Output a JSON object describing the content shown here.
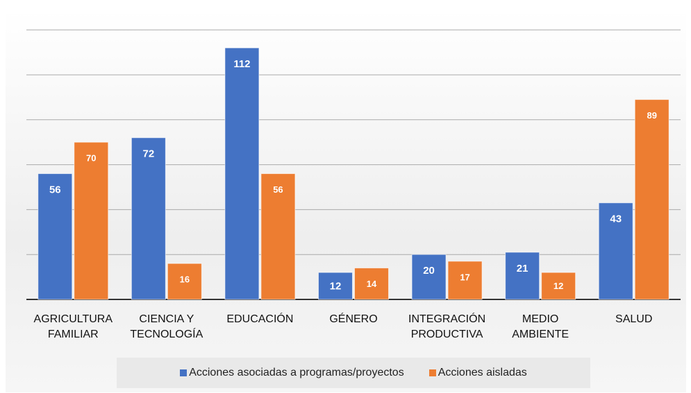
{
  "chart_data": {
    "type": "bar",
    "categories": [
      "AGRICULTURA\nFAMILIAR",
      "CIENCIA Y\nTECNOLOGÍA",
      "EDUCACIÓN",
      "GÉNERO",
      "INTEGRACIÓN\nPRODUCTIVA",
      "MEDIO\nAMBIENTE",
      "SALUD"
    ],
    "series": [
      {
        "name": "Acciones asociadas a programas/proyectos",
        "color": "#4472c4",
        "values": [
          56,
          72,
          112,
          12,
          20,
          21,
          43
        ]
      },
      {
        "name": "Acciones aisladas",
        "color": "#ed7d31",
        "values": [
          70,
          16,
          56,
          14,
          17,
          12,
          89
        ]
      }
    ],
    "ylim": [
      0,
      129
    ],
    "yticks": [
      0,
      20,
      40,
      60,
      80,
      100,
      120
    ],
    "grid": true,
    "legend": "bottom"
  }
}
